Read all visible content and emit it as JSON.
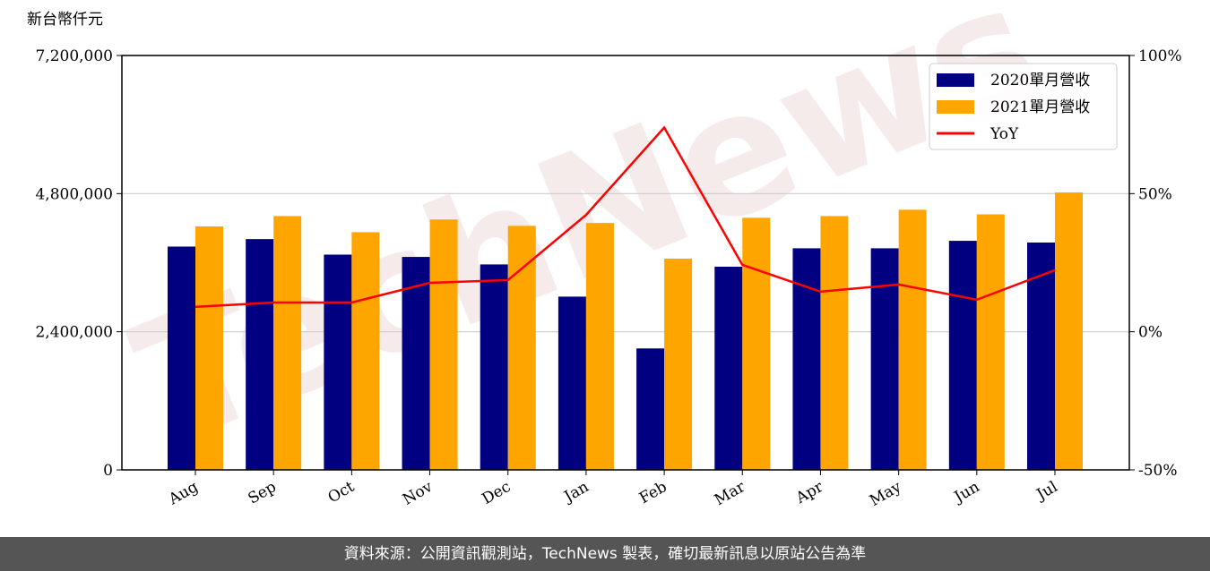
{
  "chart_data": {
    "type": "bar",
    "y_label": "新台幣仟元",
    "watermark": "TechNews",
    "source": "資料來源：公開資訊觀測站，TechNews 製表，確切最新訊息以原站公告為準",
    "categories": [
      "Aug",
      "Sep",
      "Oct",
      "Nov",
      "Dec",
      "Jan",
      "Feb",
      "Mar",
      "Apr",
      "May",
      "Jun",
      "Jul"
    ],
    "series": [
      {
        "name": "2020單月營收",
        "type": "bar",
        "color": "#000080",
        "values": [
          3880000,
          4010000,
          3740000,
          3700000,
          3570000,
          3010000,
          2110000,
          3530000,
          3850000,
          3850000,
          3980000,
          3950000
        ]
      },
      {
        "name": "2021單月營收",
        "type": "bar",
        "color": "#ffa500",
        "values": [
          4230000,
          4410000,
          4130000,
          4350000,
          4240000,
          4290000,
          3670000,
          4380000,
          4410000,
          4520000,
          4440000,
          4820000
        ]
      },
      {
        "name": "YoY",
        "type": "line",
        "axis": "y2",
        "color": "#ff0000",
        "values": [
          9,
          10.6,
          10.6,
          17.7,
          18.7,
          42.3,
          73.9,
          24.2,
          14.5,
          17.1,
          11.6,
          22.3
        ]
      }
    ],
    "ylim": [
      0,
      7200000
    ],
    "yticks": [
      0,
      {
        "value": 2400000,
        "label": "2,400,000"
      },
      {
        "value": 4800000,
        "label": "4,800,000"
      },
      {
        "value": 7200000,
        "label": "7,200,000"
      }
    ],
    "y2lim": [
      -50,
      100
    ],
    "y2ticks": [
      {
        "value": -50,
        "label": "-50%"
      },
      {
        "value": 0,
        "label": "0%"
      },
      {
        "value": 50,
        "label": "50%"
      },
      {
        "value": 100,
        "label": "100%"
      }
    ],
    "grid": true,
    "legend": "upper right"
  }
}
